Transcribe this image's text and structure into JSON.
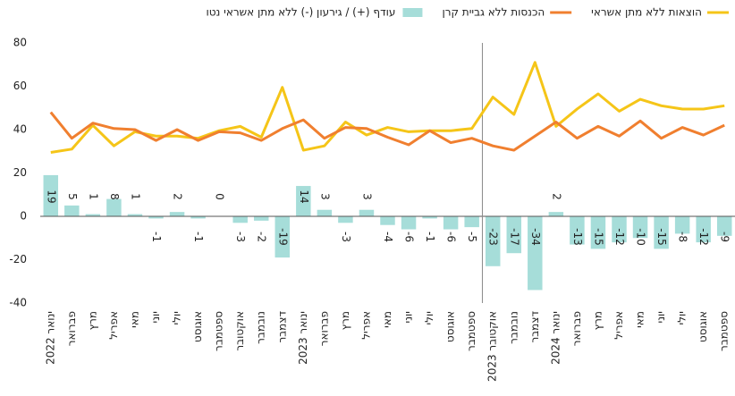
{
  "chart_data": {
    "type": "bar",
    "categories": [
      "ינואר 2022",
      "פברואר",
      "מרץ",
      "אפריל",
      "מאי",
      "יוני",
      "יולי",
      "אוגוסט",
      "ספטמבר",
      "אוקטובר",
      "נובמבר",
      "דצמבר",
      "ינואר 2023",
      "פברואר",
      "מרץ",
      "אפריל",
      "מאי",
      "יוני",
      "יולי",
      "אוגוסט",
      "ספטמבר",
      "אוקטובר 2023",
      "נובמבר",
      "דצמבר",
      "ינואר 2024",
      "פברואר",
      "מרץ",
      "אפריל",
      "מאי",
      "יוני",
      "יולי",
      "אוגוסט",
      "ספטמבר"
    ],
    "series": [
      {
        "name": "הוצאות ללא מתן אשראי",
        "type": "line",
        "color": "#f5c518",
        "values": [
          29.5,
          31,
          42,
          32.5,
          39,
          37,
          37,
          36,
          39.5,
          41.5,
          36.5,
          59.5,
          30.5,
          32.5,
          43.5,
          37.5,
          41,
          39,
          39.5,
          39.5,
          40.5,
          55,
          47,
          71,
          41.5,
          49.5,
          56.5,
          48.5,
          54,
          51,
          49.5,
          49.5,
          51
        ]
      },
      {
        "name": "הכנסות ללא גביית קרן",
        "type": "line",
        "color": "#f07f2f",
        "values": [
          48,
          36,
          43,
          40.5,
          40,
          35,
          40,
          35,
          39,
          38.5,
          35,
          40.5,
          44.5,
          36,
          41,
          40.5,
          36.5,
          33,
          39.5,
          34,
          36,
          32.5,
          30.5,
          37,
          43.5,
          36,
          41.5,
          37,
          44,
          36,
          41,
          37.5,
          42
        ]
      },
      {
        "name": "עודף (+) / גירעון (-) ללא מתן אשראי נטו",
        "type": "bar",
        "color": "#a6ddd9",
        "values": [
          19,
          5,
          1,
          8,
          1,
          -1,
          2,
          -1,
          0,
          -3,
          -2,
          -19,
          14,
          3,
          -3,
          3,
          -4,
          -6,
          -1,
          -6,
          -5,
          -23,
          -17,
          -34,
          2,
          -13,
          -15,
          -12,
          -10,
          -15,
          -8,
          -12,
          -9
        ]
      }
    ],
    "ylim": [
      -40,
      80
    ],
    "yticks": [
      -40,
      -20,
      0,
      20,
      40,
      60,
      80
    ],
    "grid": false,
    "legend": "top-right"
  }
}
